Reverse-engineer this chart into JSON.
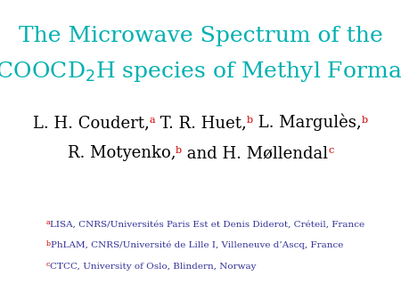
{
  "background_color": "#ffffff",
  "title_line1": "The Microwave Spectrum of the",
  "title_color": "#00b0b0",
  "title_fontsize": 18,
  "authors_fontsize": 13,
  "affiliation_color": "#333399",
  "affiliation_fontsize": 7.5,
  "affiliation_label_color": "#cc0000",
  "affiliations": [
    {
      "label": "a",
      "text": "LISA, CNRS/Universités Paris Est et Denis Diderot, Créteil, France"
    },
    {
      "label": "b",
      "text": "PhLAM, CNRS/Université de Lille I, Villeneuve d’Ascq, France"
    },
    {
      "label": "c",
      "text": "CTCC, University of Oslo, Blindern, Norway"
    }
  ]
}
